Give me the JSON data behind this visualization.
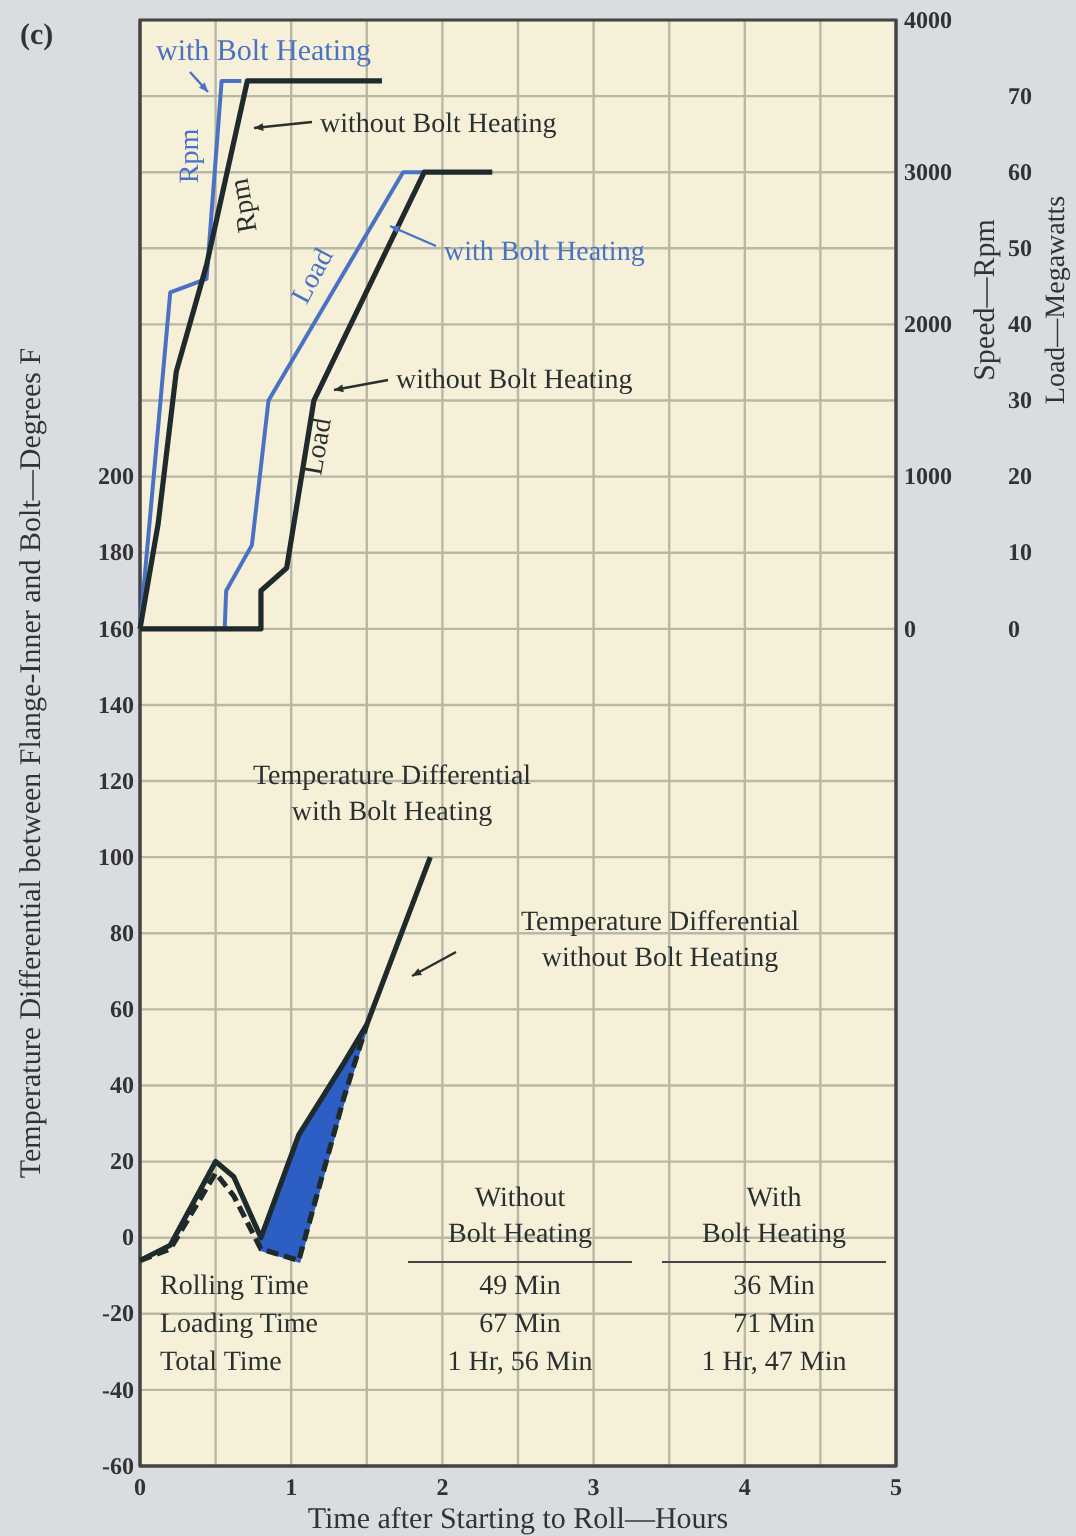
{
  "chart_data": {
    "type": "line",
    "title": "(c)",
    "xlabel": "Time after Starting to Roll—Hours",
    "ylabel": "Temperature Differential between Flange-Inner and Bolt—Degrees F",
    "y2label": "Speed—Rpm",
    "y3label": "Load—Megawatts",
    "xlim": [
      0,
      5
    ],
    "xticks": [
      0,
      {
        "value": 0.5,
        "label": null
      },
      1,
      {
        "value": 1.5,
        "label": null
      },
      2,
      {
        "value": 2.5,
        "label": null
      },
      3,
      {
        "value": 3.5,
        "label": null
      },
      4,
      {
        "value": 4.5,
        "label": null
      },
      5
    ],
    "ylim": [
      -60,
      320
    ],
    "yticks": [
      -60,
      -40,
      -20,
      0,
      20,
      40,
      60,
      80,
      100,
      120,
      140,
      160,
      180,
      200,
      {
        "value": 220,
        "label": null
      },
      {
        "value": 240,
        "label": null
      },
      {
        "value": 260,
        "label": null
      },
      {
        "value": 280,
        "label": null
      },
      {
        "value": 300,
        "label": null
      },
      {
        "value": 320,
        "label": null
      }
    ],
    "y2lim": [
      -5500,
      4000
    ],
    "y2ticks": [
      0,
      1000,
      2000,
      3000,
      4000
    ],
    "y3lim": [
      -110,
      80
    ],
    "y3ticks": [
      0,
      10,
      20,
      30,
      40,
      50,
      60,
      70
    ],
    "grid": true,
    "marker": "none",
    "series": [
      {
        "axis": "y2",
        "color": "#4a72c4",
        "x": [
          0,
          0.2,
          0.44,
          0.54,
          0.67
        ],
        "values": [
          0,
          2210,
          2300,
          3600,
          3600
        ]
      },
      {
        "axis": "y2",
        "color": "#1e2a2c",
        "x": [
          0,
          0.12,
          0.24,
          0.44,
          0.71,
          1.6
        ],
        "values": [
          0,
          690,
          1690,
          2390,
          3600,
          3600
        ]
      },
      {
        "axis": "y3",
        "color": "#4a72c4",
        "x": [
          0,
          0.56,
          0.57,
          0.74,
          0.85,
          1.74,
          1.88
        ],
        "values": [
          0,
          0,
          5,
          11,
          30,
          60,
          60
        ]
      },
      {
        "axis": "y3",
        "color": "#1e2a2c",
        "x": [
          0,
          0.8,
          0.8,
          0.97,
          1.15,
          1.88,
          2.33
        ],
        "values": [
          0,
          0,
          5,
          8,
          30,
          60,
          60
        ]
      },
      {
        "axis": "y",
        "color": "#1e2a2c",
        "line_style": "dashed",
        "x": [
          0,
          0.2,
          0.5,
          0.62,
          0.8,
          1.05,
          1.35,
          1.5
        ],
        "values": [
          -6,
          -3,
          17,
          11,
          -3,
          -6,
          37,
          56
        ],
        "lower": [
          null,
          null,
          null,
          null,
          -3,
          -6,
          37,
          56
        ],
        "upper": [
          null,
          null,
          null,
          null,
          0,
          27,
          46,
          56
        ]
      },
      {
        "axis": "y",
        "color": "#1e2a2c",
        "line_style": "solid",
        "x": [
          0,
          0.2,
          0.5,
          0.62,
          0.8,
          1.05,
          1.35,
          1.5,
          1.92
        ],
        "values": [
          -6,
          -2,
          20,
          16,
          0,
          27,
          46,
          56,
          100
        ]
      }
    ],
    "annotations": [
      "with Bolt Heating",
      "without Bolt Heating",
      "Rpm",
      "Rpm",
      "Load",
      "with Bolt Heating",
      "without Bolt Heating",
      "Load",
      "Temperature Differential",
      "with Bolt Heating",
      "Temperature Differential",
      "without Bolt Heating",
      "Without",
      "Bolt Heating",
      "With",
      "Bolt Heating",
      "Rolling Time",
      "Loading Time",
      "Total Time",
      "49 Min",
      "67 Min",
      "1 Hr, 56 Min",
      "36 Min",
      "71 Min",
      "1 Hr, 47 Min"
    ]
  }
}
